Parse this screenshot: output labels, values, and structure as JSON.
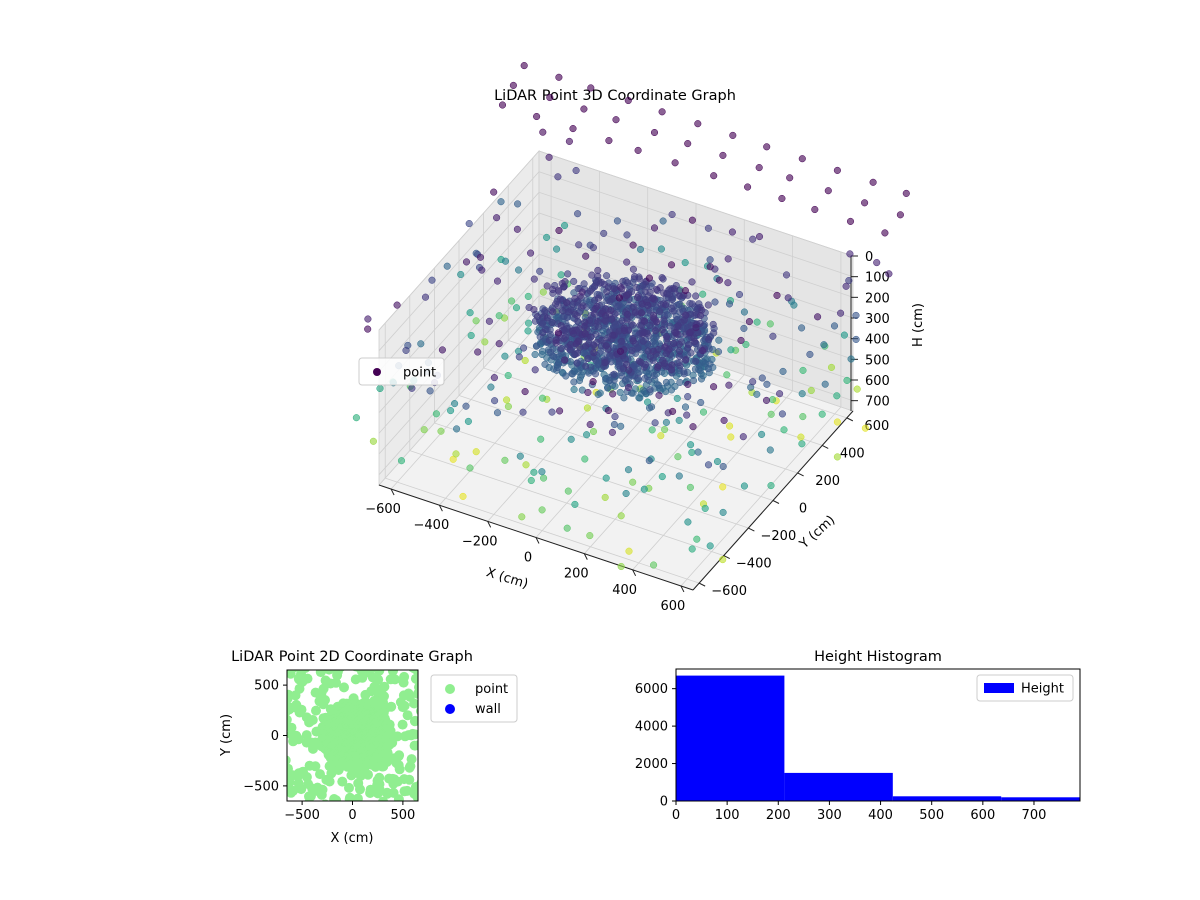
{
  "chart_data": [
    {
      "type": "scatter3d",
      "title": "LiDAR Point 3D Coordinate Graph",
      "xlabel": "X (cm)",
      "ylabel": "Y (cm)",
      "zlabel": "H (cm)",
      "xticks": [
        "−600",
        "−400",
        "−200",
        "0",
        "200",
        "400",
        "600"
      ],
      "yticks": [
        "−600",
        "−400",
        "−200",
        "0",
        "200",
        "400",
        "600"
      ],
      "zticks": [
        "0",
        "100",
        "200",
        "300",
        "400",
        "500",
        "600",
        "700"
      ],
      "xlim": [
        -650,
        650
      ],
      "ylim": [
        -650,
        650
      ],
      "zlim": [
        0,
        750
      ],
      "z_inverted": true,
      "colormap": "viridis",
      "legend": {
        "label": "point",
        "placement": "center-left",
        "color": "#440154"
      },
      "grid": true
    },
    {
      "type": "scatter",
      "title": "LiDAR Point 2D Coordinate Graph",
      "xlabel": "X (cm)",
      "ylabel": "Y (cm)",
      "xticks": [
        "−500",
        "0",
        "500"
      ],
      "yticks": [
        "500",
        "0",
        "−500"
      ],
      "xlim": [
        -650,
        650
      ],
      "ylim": [
        -650,
        650
      ],
      "series": [
        {
          "name": "point",
          "color": "#90ee90"
        },
        {
          "name": "wall",
          "color": "#0000ff"
        }
      ],
      "legend_placement": "outside-right"
    },
    {
      "type": "bar",
      "title": "Height Histogram",
      "bin_edges": [
        0,
        212,
        424,
        636,
        848
      ],
      "values": [
        6700,
        1500,
        250,
        200
      ],
      "xticks": [
        "0",
        "100",
        "200",
        "300",
        "400",
        "500",
        "600",
        "700"
      ],
      "yticks": [
        "0",
        "2000",
        "4000",
        "6000"
      ],
      "xlim": [
        0,
        790
      ],
      "ylim": [
        0,
        7050
      ],
      "series": [
        {
          "name": "Height",
          "color": "#0000ff"
        }
      ],
      "legend_placement": "top-right"
    }
  ]
}
